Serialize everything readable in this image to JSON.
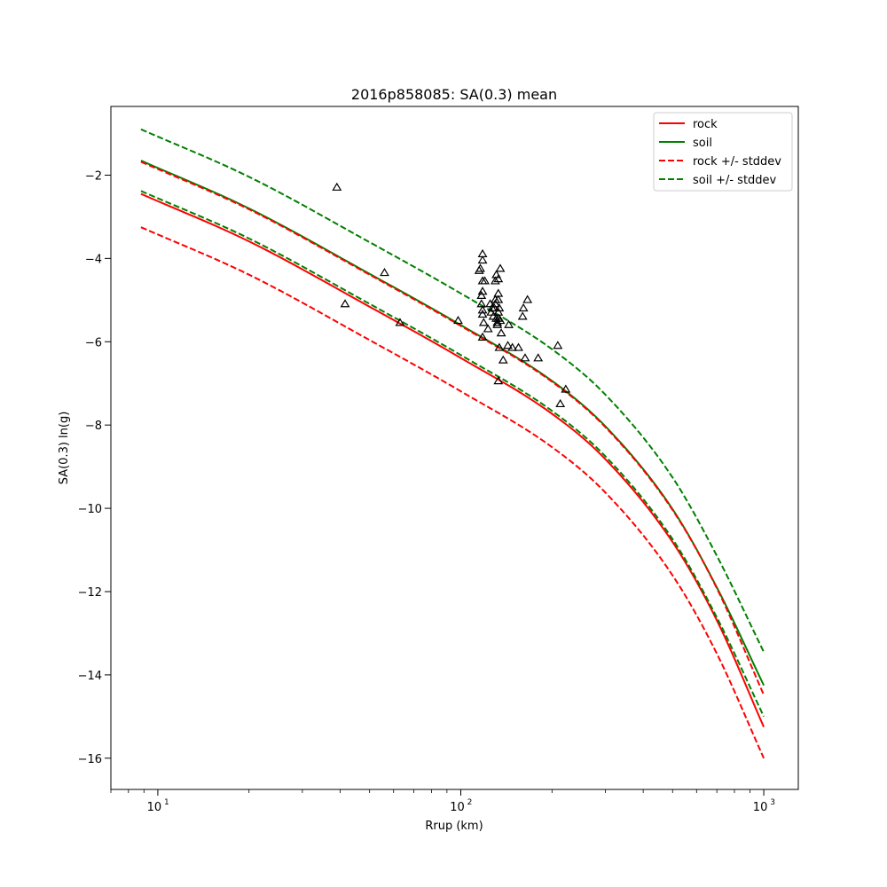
{
  "chart_data": {
    "type": "line",
    "title": "2016p858085: SA(0.3) mean",
    "xlabel": "Rrup (km)",
    "ylabel": "SA(0.3) ln(g)",
    "xscale": "log",
    "xlim": [
      7,
      1300
    ],
    "ylim": [
      -16.75,
      -0.35
    ],
    "xticks": [
      {
        "value": 10,
        "base": "10",
        "exp": "1"
      },
      {
        "value": 100,
        "base": "10",
        "exp": "2"
      },
      {
        "value": 1000,
        "base": "10",
        "exp": "3"
      }
    ],
    "yticks": [
      {
        "value": -2,
        "label": "−2"
      },
      {
        "value": -4,
        "label": "−4"
      },
      {
        "value": -6,
        "label": "−6"
      },
      {
        "value": -8,
        "label": "−8"
      },
      {
        "value": -10,
        "label": "−10"
      },
      {
        "value": -12,
        "label": "−12"
      },
      {
        "value": -14,
        "label": "−14"
      },
      {
        "value": -16,
        "label": "−16"
      }
    ],
    "grid": false,
    "legend": {
      "position": "top-right",
      "entries": [
        {
          "label": "rock",
          "color": "#ff0000",
          "dash": "solid"
        },
        {
          "label": "soil",
          "color": "#008000",
          "dash": "solid"
        },
        {
          "label": "rock +/- stddev",
          "color": "#ff0000",
          "dash": "dashed"
        },
        {
          "label": "soil +/- stddev",
          "color": "#008000",
          "dash": "dashed"
        }
      ]
    },
    "series": [
      {
        "key": "rock",
        "color": "#ff0000",
        "dash": "solid",
        "x": [
          8.8,
          20,
          50,
          100,
          200,
          300,
          500,
          700,
          1000
        ],
        "y": [
          -2.45,
          -3.59,
          -5.16,
          -6.39,
          -7.73,
          -8.82,
          -10.81,
          -12.69,
          -15.25
        ]
      },
      {
        "key": "soil",
        "color": "#008000",
        "dash": "solid",
        "x": [
          8.8,
          20,
          50,
          100,
          200,
          300,
          500,
          700,
          1000
        ],
        "y": [
          -1.65,
          -2.8,
          -4.37,
          -5.6,
          -6.94,
          -8.03,
          -10.02,
          -11.9,
          -14.25
        ]
      },
      {
        "key": "rock_plus",
        "color": "#ff0000",
        "dash": "dashed",
        "x": [
          8.8,
          20,
          50,
          100,
          200,
          300,
          500,
          700,
          1000
        ],
        "y": [
          -1.68,
          -2.82,
          -4.39,
          -5.62,
          -6.96,
          -8.05,
          -10.04,
          -11.92,
          -14.48
        ]
      },
      {
        "key": "rock_minus",
        "color": "#ff0000",
        "dash": "dashed",
        "x": [
          8.8,
          20,
          50,
          100,
          200,
          300,
          500,
          700,
          1000
        ],
        "y": [
          -3.25,
          -4.39,
          -5.96,
          -7.19,
          -8.53,
          -9.62,
          -11.61,
          -13.49,
          -16.0
        ]
      },
      {
        "key": "soil_plus",
        "color": "#008000",
        "dash": "dashed",
        "x": [
          8.8,
          20,
          50,
          100,
          200,
          300,
          500,
          700,
          1000
        ],
        "y": [
          -0.9,
          -2.04,
          -3.61,
          -4.84,
          -6.18,
          -7.27,
          -9.26,
          -11.14,
          -13.45
        ]
      },
      {
        "key": "soil_minus",
        "color": "#008000",
        "dash": "dashed",
        "x": [
          8.8,
          20,
          50,
          100,
          200,
          300,
          500,
          700,
          1000
        ],
        "y": [
          -2.38,
          -3.52,
          -5.09,
          -6.32,
          -7.66,
          -8.75,
          -10.74,
          -12.62,
          -15.0
        ]
      }
    ],
    "observations": {
      "marker": "triangle",
      "color": "#000000",
      "points": [
        [
          39,
          -2.3
        ],
        [
          41.5,
          -5.1
        ],
        [
          56,
          -4.35
        ],
        [
          63,
          -5.55
        ],
        [
          98,
          -5.5
        ],
        [
          115,
          -4.3
        ],
        [
          116,
          -4.25
        ],
        [
          117,
          -4.9
        ],
        [
          117,
          -5.1
        ],
        [
          118,
          -3.9
        ],
        [
          118,
          -4.05
        ],
        [
          118,
          -4.55
        ],
        [
          118,
          -4.8
        ],
        [
          118,
          -5.25
        ],
        [
          118,
          -5.35
        ],
        [
          118,
          -5.9
        ],
        [
          119,
          -5.55
        ],
        [
          120,
          -4.55
        ],
        [
          123,
          -5.7
        ],
        [
          125,
          -5.1
        ],
        [
          126,
          -5.3
        ],
        [
          127,
          -5.2
        ],
        [
          128,
          -5.4
        ],
        [
          129,
          -5.2
        ],
        [
          130,
          -5.0
        ],
        [
          130,
          -5.1
        ],
        [
          130,
          -4.55
        ],
        [
          131,
          -4.4
        ],
        [
          131,
          -5.45
        ],
        [
          132,
          -5.55
        ],
        [
          132,
          -5.6
        ],
        [
          133,
          -4.5
        ],
        [
          133,
          -4.85
        ],
        [
          133,
          -5.0
        ],
        [
          133,
          -5.3
        ],
        [
          133,
          -5.45
        ],
        [
          133,
          -6.95
        ],
        [
          134,
          -5.2
        ],
        [
          134,
          -6.15
        ],
        [
          135,
          -4.25
        ],
        [
          135,
          -5.5
        ],
        [
          136,
          -5.8
        ],
        [
          138,
          -6.45
        ],
        [
          143,
          -6.1
        ],
        [
          144,
          -5.6
        ],
        [
          148,
          -6.15
        ],
        [
          155,
          -6.15
        ],
        [
          160,
          -5.4
        ],
        [
          161,
          -5.2
        ],
        [
          163,
          -6.4
        ],
        [
          166,
          -5.0
        ],
        [
          180,
          -6.4
        ],
        [
          209,
          -6.1
        ],
        [
          213,
          -7.5
        ],
        [
          222,
          -7.15
        ]
      ]
    }
  }
}
